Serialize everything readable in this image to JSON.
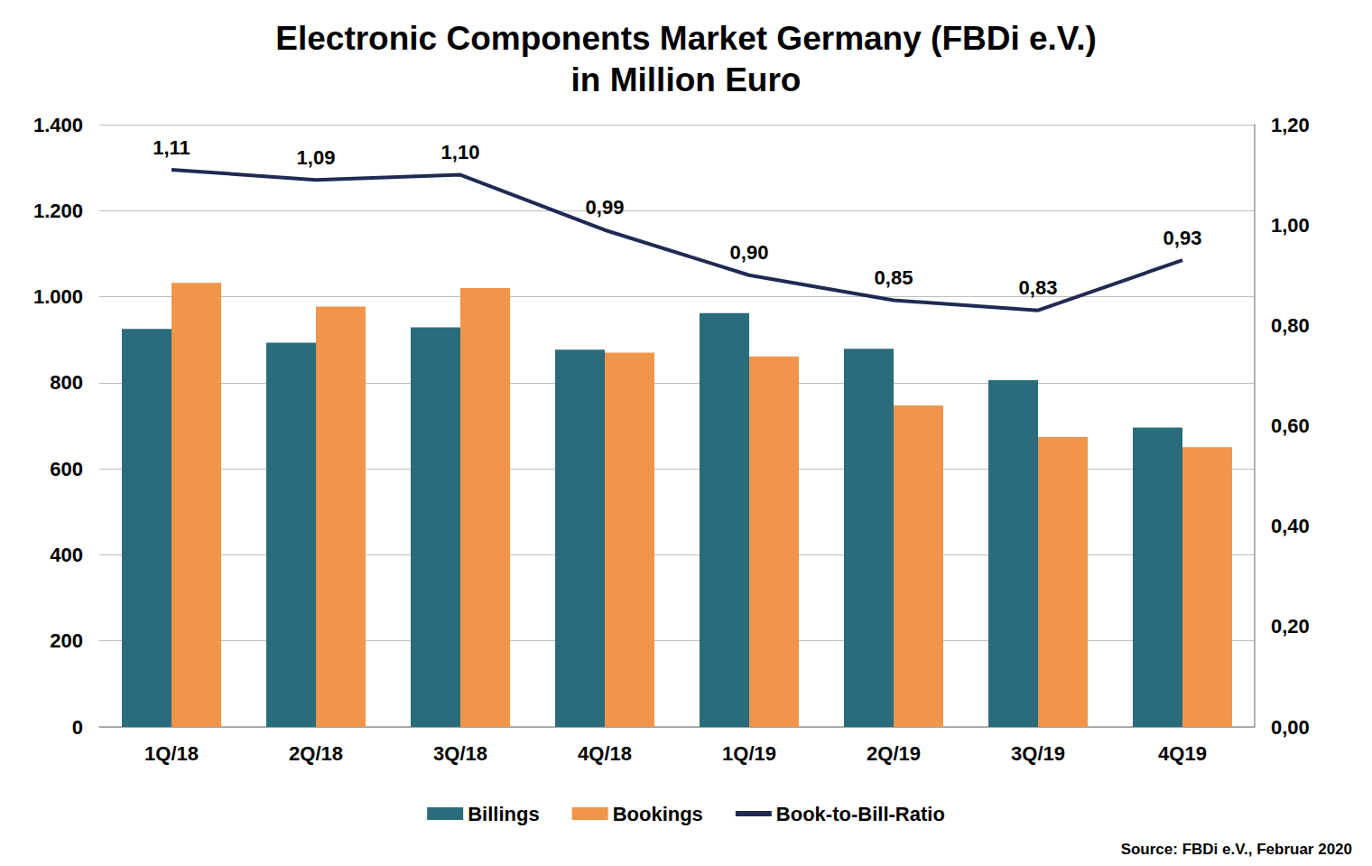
{
  "chart_data": {
    "type": "bar",
    "title": "Electronic Components Market Germany (FBDi e.V.)\nin Million Euro",
    "annotations": [
      "Source: FBDi e.V., Februar 2020"
    ],
    "categories": [
      "1Q/18",
      "2Q/18",
      "3Q/18",
      "4Q/18",
      "1Q/19",
      "2Q/19",
      "3Q/19",
      "4Q19"
    ],
    "series": [
      {
        "name": "Billings",
        "type": "bar",
        "color": "#2a6b7c",
        "values": [
          925,
          893,
          929,
          877,
          962,
          879,
          806,
          696
        ]
      },
      {
        "name": "Bookings",
        "type": "bar",
        "color": "#f0954a",
        "values": [
          1032,
          977,
          1020,
          870,
          861,
          747,
          674,
          650
        ]
      },
      {
        "name": "Book-to-Bill-Ratio",
        "type": "line",
        "axis": "y2",
        "color": "#1f2a55",
        "line_style": "solid",
        "marker": "none",
        "data_labels": true,
        "values": [
          1.11,
          1.09,
          1.1,
          0.99,
          0.9,
          0.85,
          0.83,
          0.93
        ],
        "value_labels": [
          "1,11",
          "1,09",
          "1,10",
          "0,99",
          "0,90",
          "0,85",
          "0,83",
          "0,93"
        ]
      }
    ],
    "ylim": [
      0,
      1400
    ],
    "yticks": [
      0,
      200,
      400,
      600,
      800,
      {
        "value": 1000,
        "label": "1.000"
      },
      {
        "value": 1200,
        "label": "1.200"
      },
      {
        "value": 1400,
        "label": "1.400"
      }
    ],
    "y2lim": [
      0,
      1.2
    ],
    "y2ticks": [
      {
        "value": 0,
        "label": "0,00"
      },
      {
        "value": 0.2,
        "label": "0,20"
      },
      {
        "value": 0.4,
        "label": "0,40"
      },
      {
        "value": 0.6,
        "label": "0,60"
      },
      {
        "value": 0.8,
        "label": "0,80"
      },
      {
        "value": 1.0,
        "label": "1,00"
      },
      {
        "value": 1.2,
        "label": "1,20"
      }
    ],
    "grid": true,
    "legend": "bottom"
  }
}
